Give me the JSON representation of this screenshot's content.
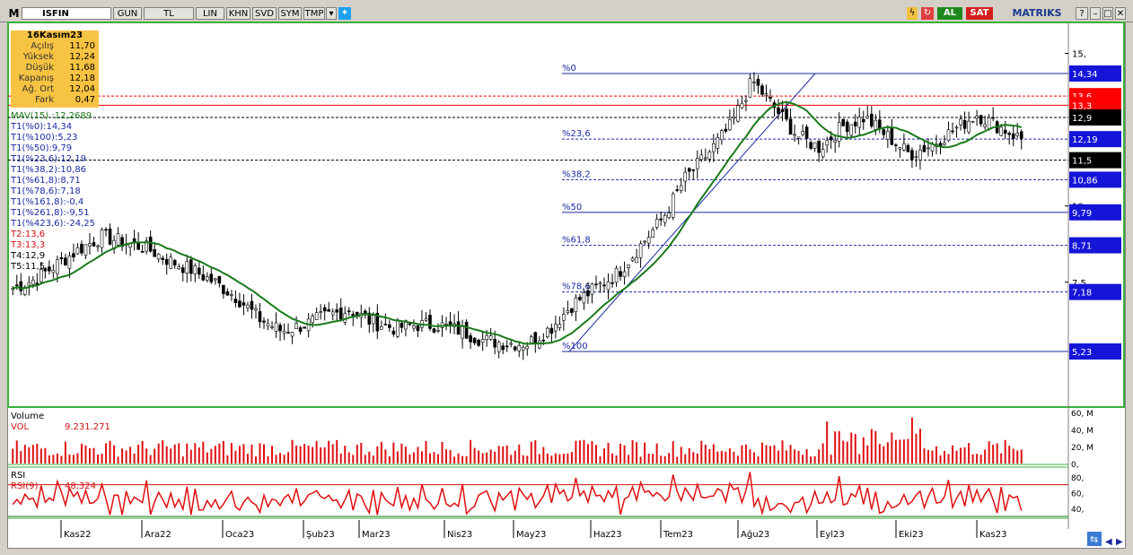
{
  "toolbar": {
    "m_label": "M",
    "symbol": "ISFIN",
    "buttons": [
      "GUN",
      "TL",
      "LIN",
      "KHN",
      "SVD",
      "SYM",
      "TMP"
    ],
    "buy_label": "AL",
    "sell_label": "SAT",
    "brand": "MATRIKS"
  },
  "info": {
    "date": "16Kasım23",
    "rows": [
      {
        "k": "Açılış",
        "v": "11,70"
      },
      {
        "k": "Yüksek",
        "v": "12,24"
      },
      {
        "k": "Düşük",
        "v": "11,68"
      },
      {
        "k": "Kapanış",
        "v": "12,18"
      },
      {
        "k": "Ağ. Ort",
        "v": "12,04"
      },
      {
        "k": "Fark",
        "v": "0,47"
      }
    ]
  },
  "indicators": [
    {
      "text": "MAV(15)      :12,2689",
      "color": "#1a7a1a"
    },
    {
      "text": "T1(%0):14,34",
      "color": "#1a2aa0"
    },
    {
      "text": "T1(%100):5,23",
      "color": "#1a2aa0"
    },
    {
      "text": "T1(%50):9,79",
      "color": "#1a2aa0"
    },
    {
      "text": "T1(%23,6):12,19",
      "color": "#1a2aa0"
    },
    {
      "text": "T1(%38,2):10,86",
      "color": "#1a2aa0"
    },
    {
      "text": "T1(%61,8):8,71",
      "color": "#1a2aa0"
    },
    {
      "text": "T1(%78,6):7,18",
      "color": "#1a2aa0"
    },
    {
      "text": "T1(%161,8):-0,4",
      "color": "#1a2aa0"
    },
    {
      "text": "T1(%261,8):-9,51",
      "color": "#1a2aa0"
    },
    {
      "text": "T1(%423,6):-24,25",
      "color": "#1a2aa0"
    },
    {
      "text": "T2:13,6",
      "color": "#d01010"
    },
    {
      "text": "T3:13,3",
      "color": "#d01010"
    },
    {
      "text": "T4:12,9",
      "color": "#000000"
    },
    {
      "text": "T5:11,5",
      "color": "#000000"
    }
  ],
  "chart_data": {
    "type": "candlestick",
    "price_axis_ticks": [
      "15,",
      "10,",
      "7,5"
    ],
    "fib_levels": [
      {
        "label": "%0",
        "value": 14.34,
        "tag": "14,34"
      },
      {
        "label": "%23,6",
        "value": 12.19,
        "tag": "12,19"
      },
      {
        "label": "%38,2",
        "value": 10.86,
        "tag": "10,86"
      },
      {
        "label": "%50",
        "value": 9.79,
        "tag": "9,79"
      },
      {
        "label": "%61,8",
        "value": 8.71,
        "tag": "8,71"
      },
      {
        "label": "%78,6",
        "value": 7.18,
        "tag": "7,18"
      },
      {
        "label": "%100",
        "value": 5.23,
        "tag": "5,23"
      }
    ],
    "horizontal_lines": [
      {
        "value": 13.6,
        "tag": "13,6",
        "color": "#ff0000"
      },
      {
        "value": 13.3,
        "tag": "13,3",
        "color": "#ff0000"
      },
      {
        "value": 12.9,
        "tag": "12,9",
        "color": "#000000"
      },
      {
        "value": 11.5,
        "tag": "11,5",
        "color": "#000000"
      }
    ],
    "months": [
      "Kas22",
      "Ara22",
      "Oca23",
      "Şub23",
      "Mar23",
      "Nis23",
      "May23",
      "Haz23",
      "Tem23",
      "Ağu23",
      "Eyl23",
      "Eki23",
      "Kas23"
    ],
    "close_trend": [
      7.3,
      7.6,
      8.1,
      8.6,
      9.0,
      8.8,
      8.6,
      8.2,
      7.9,
      7.5,
      7.0,
      6.3,
      5.9,
      6.1,
      6.4,
      6.6,
      6.2,
      6.0,
      6.1,
      6.1,
      5.9,
      5.6,
      5.5,
      5.5,
      6.0,
      6.8,
      7.3,
      7.8,
      8.7,
      9.6,
      10.9,
      11.7,
      12.6,
      14.1,
      13.2,
      12.3,
      11.9,
      12.6,
      12.9,
      12.3,
      11.7,
      12.0,
      12.5,
      13.0,
      12.6,
      12.2
    ],
    "mav15_last": "12,2689",
    "volume": {
      "label": "Volume",
      "series_name": "VOL",
      "last": "9.231.271",
      "axis_ticks": [
        "60, M",
        "40, M",
        "20, M",
        "0,"
      ]
    },
    "rsi": {
      "label": "RSI",
      "series_name": "RSI(9)",
      "last": "48,324",
      "axis_ticks": [
        "80,",
        "60,",
        "40,"
      ]
    }
  }
}
